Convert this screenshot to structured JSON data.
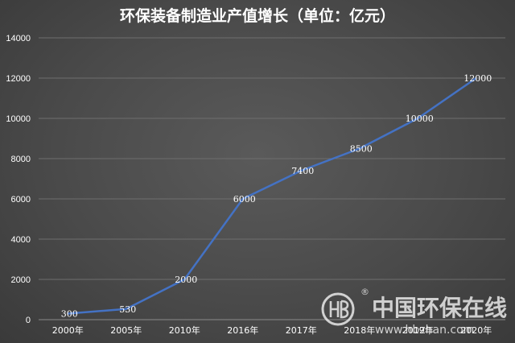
{
  "chart_data": {
    "type": "line",
    "title": "环保装备制造业产值增长（单位：亿元）",
    "categories": [
      "2000年",
      "2005年",
      "2010年",
      "2016年",
      "2017年",
      "2018年",
      "2019年",
      "2020年"
    ],
    "series": [
      {
        "values": [
          300,
          530,
          2000,
          6000,
          7400,
          8500,
          10000,
          12000
        ],
        "color": "#4472c4"
      }
    ],
    "data_labels": [
      "300",
      "530",
      "2000",
      "6000",
      "7400",
      "8500",
      "10000",
      "12000"
    ],
    "ylim": [
      0,
      14000
    ],
    "yticks": [
      0,
      2000,
      4000,
      6000,
      8000,
      10000,
      12000,
      14000
    ],
    "xlabel": "",
    "ylabel": "",
    "grid": true,
    "legend": "none"
  },
  "watermark": {
    "logo_icon": "hb-logo-icon",
    "registered_mark": "®",
    "name": "中国环保在线",
    "url": "www.hbzhan.com"
  }
}
